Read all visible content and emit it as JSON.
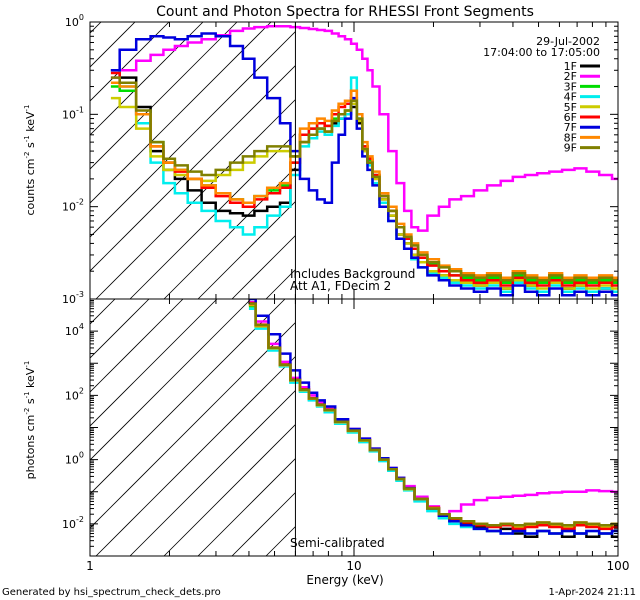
{
  "title": "Count and Photon Spectra for RHESSI Front Segments",
  "date": "29-Jul-2002",
  "time_range": "17:04:00 to 17:05:00",
  "xlabel": "Energy (keV)",
  "footer_left": "Generated by hsi_spectrum_check_dets.pro",
  "footer_right": "1-Apr-2024 21:11",
  "colors": {
    "1F": "#000000",
    "2F": "#ff00ff",
    "3F": "#00dd00",
    "4F": "#00eeee",
    "5F": "#cccc00",
    "6F": "#ff0000",
    "7F": "#0000dd",
    "8F": "#ff8800",
    "9F": "#808000"
  },
  "chart_data": [
    {
      "type": "line",
      "step": true,
      "name": "count-spectra",
      "ylabel_main": "counts cm",
      "ylabel_exp1": "-2",
      "ylabel_mid": " s",
      "ylabel_exp2": "-1",
      "ylabel_end": " keV",
      "ylabel_exp3": "-1",
      "xscale": "log",
      "yscale": "log",
      "xlim": [
        1,
        100
      ],
      "ylim": [
        0.001,
        1
      ],
      "x_ticks": [
        1,
        10,
        100
      ],
      "y_ticks": [
        {
          "value": 0.001,
          "mantissa": "10",
          "exp": "-3"
        },
        {
          "value": 0.01,
          "mantissa": "10",
          "exp": "-2"
        },
        {
          "value": 0.1,
          "mantissa": "10",
          "exp": "-1"
        },
        {
          "value": 1,
          "mantissa": "10",
          "exp": "0"
        }
      ],
      "vline_keV": 6,
      "annotation_lines": [
        "Includes Background",
        "Att A1, FDecim 2"
      ],
      "x": [
        1.2,
        1.4,
        1.6,
        1.8,
        2.0,
        2.2,
        2.5,
        2.8,
        3.2,
        3.6,
        4.0,
        4.4,
        5.0,
        5.5,
        6.0,
        6.5,
        7.0,
        7.5,
        8.0,
        8.5,
        9.0,
        9.5,
        10.0,
        10.5,
        11.0,
        11.5,
        12.0,
        13.0,
        14.0,
        15.0,
        16.0,
        17.0,
        18.0,
        20.0,
        22.0,
        24.0,
        27.0,
        30.0,
        34.0,
        38.0,
        42.0,
        47.0,
        52.0,
        58.0,
        65.0,
        72.0,
        80.0,
        90.0,
        100.0
      ],
      "series": [
        {
          "name": "1F",
          "values": [
            0.3,
            0.25,
            0.12,
            0.04,
            0.025,
            0.02,
            0.015,
            0.011,
            0.009,
            0.0085,
            0.008,
            0.009,
            0.01,
            0.011,
            0.025,
            0.05,
            0.06,
            0.07,
            0.065,
            0.08,
            0.09,
            0.1,
            0.12,
            0.08,
            0.04,
            0.03,
            0.02,
            0.012,
            0.008,
            0.005,
            0.004,
            0.003,
            0.0025,
            0.002,
            0.0018,
            0.0016,
            0.0015,
            0.0014,
            0.0015,
            0.0013,
            0.0016,
            0.0014,
            0.0012,
            0.0015,
            0.0013,
            0.0014,
            0.0012,
            0.0013,
            0.0012
          ]
        },
        {
          "name": "2F",
          "values": [
            0.25,
            0.3,
            0.38,
            0.44,
            0.5,
            0.55,
            0.6,
            0.65,
            0.72,
            0.8,
            0.85,
            0.88,
            0.9,
            0.9,
            0.88,
            0.86,
            0.84,
            0.82,
            0.8,
            0.75,
            0.7,
            0.65,
            0.58,
            0.5,
            0.4,
            0.3,
            0.2,
            0.1,
            0.04,
            0.018,
            0.009,
            0.006,
            0.0055,
            0.008,
            0.01,
            0.012,
            0.013,
            0.015,
            0.017,
            0.019,
            0.021,
            0.022,
            0.023,
            0.024,
            0.025,
            0.026,
            0.024,
            0.022,
            0.02
          ]
        },
        {
          "name": "3F",
          "values": [
            0.2,
            0.18,
            0.1,
            0.05,
            0.03,
            0.025,
            0.02,
            0.017,
            0.014,
            0.012,
            0.011,
            0.013,
            0.015,
            0.017,
            0.03,
            0.06,
            0.07,
            0.08,
            0.075,
            0.09,
            0.1,
            0.11,
            0.14,
            0.09,
            0.045,
            0.032,
            0.022,
            0.013,
            0.009,
            0.006,
            0.0045,
            0.0035,
            0.0028,
            0.0024,
            0.002,
            0.0018,
            0.0017,
            0.0016,
            0.0017,
            0.0015,
            0.0018,
            0.0016,
            0.0015,
            0.0017,
            0.0015,
            0.0016,
            0.0015,
            0.0016,
            0.0015
          ]
        },
        {
          "name": "4F",
          "values": [
            0.3,
            0.2,
            0.08,
            0.03,
            0.018,
            0.014,
            0.011,
            0.009,
            0.007,
            0.006,
            0.005,
            0.006,
            0.008,
            0.01,
            0.022,
            0.045,
            0.055,
            0.065,
            0.06,
            0.075,
            0.09,
            0.1,
            0.25,
            0.09,
            0.04,
            0.028,
            0.018,
            0.011,
            0.007,
            0.0045,
            0.0035,
            0.0027,
            0.0022,
            0.0019,
            0.0017,
            0.0015,
            0.0014,
            0.0013,
            0.0014,
            0.0012,
            0.0015,
            0.0013,
            0.0012,
            0.0014,
            0.0012,
            0.0013,
            0.0012,
            0.0013,
            0.0012
          ]
        },
        {
          "name": "5F",
          "values": [
            0.15,
            0.12,
            0.07,
            0.035,
            0.025,
            0.022,
            0.02,
            0.019,
            0.022,
            0.025,
            0.03,
            0.035,
            0.04,
            0.04,
            0.035,
            0.05,
            0.06,
            0.07,
            0.065,
            0.085,
            0.1,
            0.11,
            0.13,
            0.085,
            0.04,
            0.03,
            0.02,
            0.012,
            0.008,
            0.005,
            0.004,
            0.003,
            0.0025,
            0.002,
            0.0018,
            0.0016,
            0.0015,
            0.0014,
            0.0015,
            0.0013,
            0.0016,
            0.0014,
            0.0013,
            0.0015,
            0.0013,
            0.0014,
            0.0013,
            0.0014,
            0.0013
          ]
        },
        {
          "name": "6F",
          "values": [
            0.28,
            0.22,
            0.1,
            0.045,
            0.03,
            0.024,
            0.02,
            0.016,
            0.013,
            0.011,
            0.01,
            0.012,
            0.014,
            0.016,
            0.03,
            0.06,
            0.07,
            0.08,
            0.075,
            0.1,
            0.12,
            0.13,
            0.18,
            0.1,
            0.045,
            0.033,
            0.022,
            0.013,
            0.009,
            0.006,
            0.0045,
            0.0035,
            0.0028,
            0.0023,
            0.002,
            0.0018,
            0.0016,
            0.0015,
            0.0016,
            0.0014,
            0.0017,
            0.0015,
            0.0014,
            0.0016,
            0.0014,
            0.0015,
            0.0014,
            0.0015,
            0.0014
          ]
        },
        {
          "name": "7F",
          "values": [
            0.3,
            0.5,
            0.65,
            0.7,
            0.68,
            0.65,
            0.7,
            0.75,
            0.7,
            0.55,
            0.4,
            0.25,
            0.15,
            0.08,
            0.04,
            0.02,
            0.015,
            0.012,
            0.011,
            0.03,
            0.06,
            0.09,
            0.15,
            0.07,
            0.035,
            0.025,
            0.017,
            0.01,
            0.007,
            0.0045,
            0.0035,
            0.0028,
            0.0022,
            0.0018,
            0.0016,
            0.0014,
            0.0013,
            0.0012,
            0.0013,
            0.0011,
            0.0014,
            0.0012,
            0.0011,
            0.0013,
            0.0011,
            0.0012,
            0.0011,
            0.0012,
            0.0011
          ]
        },
        {
          "name": "8F",
          "values": [
            0.22,
            0.2,
            0.1,
            0.045,
            0.03,
            0.025,
            0.02,
            0.017,
            0.014,
            0.012,
            0.011,
            0.013,
            0.016,
            0.018,
            0.035,
            0.07,
            0.08,
            0.09,
            0.085,
            0.11,
            0.13,
            0.14,
            0.18,
            0.1,
            0.05,
            0.035,
            0.024,
            0.014,
            0.01,
            0.0065,
            0.005,
            0.004,
            0.0032,
            0.0027,
            0.0023,
            0.0021,
            0.0019,
            0.0018,
            0.0019,
            0.0017,
            0.002,
            0.0018,
            0.0017,
            0.0019,
            0.0017,
            0.0018,
            0.0017,
            0.0018,
            0.0017
          ]
        },
        {
          "name": "9F",
          "values": [
            0.25,
            0.22,
            0.11,
            0.05,
            0.033,
            0.028,
            0.024,
            0.022,
            0.025,
            0.03,
            0.035,
            0.04,
            0.045,
            0.045,
            0.035,
            0.05,
            0.06,
            0.07,
            0.065,
            0.085,
            0.1,
            0.11,
            0.14,
            0.09,
            0.042,
            0.03,
            0.021,
            0.013,
            0.009,
            0.006,
            0.0047,
            0.0038,
            0.003,
            0.0025,
            0.0022,
            0.002,
            0.0018,
            0.0017,
            0.0018,
            0.0016,
            0.0019,
            0.0017,
            0.0016,
            0.0018,
            0.0016,
            0.0017,
            0.0016,
            0.0017,
            0.0016
          ]
        }
      ]
    },
    {
      "type": "line",
      "step": true,
      "name": "photon-spectra",
      "ylabel_main": "photons cm",
      "ylabel_exp1": "-2",
      "ylabel_mid": " s",
      "ylabel_exp2": "-1",
      "ylabel_end": " keV",
      "ylabel_exp3": "-1",
      "xscale": "log",
      "yscale": "log",
      "xlim": [
        1,
        100
      ],
      "ylim": [
        0.001,
        100000
      ],
      "x_ticks": [
        1,
        10,
        100
      ],
      "y_ticks": [
        {
          "value": 0.01,
          "mantissa": "10",
          "exp": "-2"
        },
        {
          "value": 1,
          "mantissa": "10",
          "exp": "0"
        },
        {
          "value": 100,
          "mantissa": "10",
          "exp": "2"
        },
        {
          "value": 10000,
          "mantissa": "10",
          "exp": "4"
        }
      ],
      "vline_keV": 6,
      "annotation_lines": [
        "Semi-calibrated"
      ],
      "x": [
        4.0,
        4.5,
        5.0,
        5.5,
        6.0,
        6.5,
        7.0,
        7.5,
        8.0,
        9.0,
        10.0,
        11.0,
        12.0,
        13.0,
        14.0,
        15.0,
        16.0,
        18.0,
        20.0,
        22.0,
        24.0,
        27.0,
        30.0,
        34.0,
        38.0,
        42.0,
        47.0,
        52.0,
        58.0,
        65.0,
        72.0,
        80.0,
        90.0,
        100.0
      ],
      "series": [
        {
          "name": "1F",
          "values": [
            70000,
            15000,
            3000,
            900,
            300,
            150,
            80,
            50,
            35,
            15,
            8,
            4,
            2,
            1,
            0.5,
            0.25,
            0.13,
            0.06,
            0.03,
            0.018,
            0.012,
            0.01,
            0.008,
            0.006,
            0.007,
            0.005,
            0.004,
            0.006,
            0.005,
            0.004,
            0.005,
            0.004,
            0.005,
            0.004
          ]
        },
        {
          "name": "2F",
          "values": [
            80000,
            20000,
            4000,
            1100,
            350,
            180,
            100,
            60,
            40,
            18,
            9,
            4.5,
            2.2,
            1.1,
            0.55,
            0.27,
            0.15,
            0.07,
            0.035,
            0.02,
            0.025,
            0.04,
            0.055,
            0.065,
            0.07,
            0.075,
            0.08,
            0.09,
            0.095,
            0.1,
            0.1,
            0.11,
            0.105,
            0.1
          ]
        },
        {
          "name": "3F",
          "values": [
            60000,
            14000,
            2800,
            850,
            280,
            140,
            75,
            48,
            33,
            14,
            7.5,
            3.8,
            1.9,
            0.95,
            0.48,
            0.24,
            0.12,
            0.055,
            0.03,
            0.02,
            0.015,
            0.012,
            0.01,
            0.009,
            0.01,
            0.008,
            0.009,
            0.01,
            0.009,
            0.008,
            0.01,
            0.009,
            0.008,
            0.009
          ]
        },
        {
          "name": "4F",
          "values": [
            50000,
            12000,
            2500,
            800,
            250,
            130,
            70,
            45,
            30,
            13,
            7,
            3.5,
            1.8,
            0.9,
            0.45,
            0.22,
            0.11,
            0.05,
            0.025,
            0.015,
            0.01,
            0.008,
            0.007,
            0.006,
            0.005,
            0.006,
            0.005,
            0.006,
            0.005,
            0.006,
            0.005,
            0.006,
            0.005,
            0.006
          ]
        },
        {
          "name": "5F",
          "values": [
            65000,
            14000,
            2900,
            870,
            290,
            145,
            78,
            49,
            34,
            14.5,
            7.8,
            3.9,
            2,
            1,
            0.5,
            0.25,
            0.12,
            0.058,
            0.03,
            0.02,
            0.015,
            0.012,
            0.01,
            0.009,
            0.01,
            0.008,
            0.009,
            0.01,
            0.009,
            0.008,
            0.01,
            0.009,
            0.008,
            0.009
          ]
        },
        {
          "name": "6F",
          "values": [
            75000,
            16000,
            3100,
            920,
            310,
            155,
            82,
            52,
            36,
            15.5,
            8.2,
            4.1,
            2.05,
            1.02,
            0.51,
            0.26,
            0.13,
            0.06,
            0.032,
            0.02,
            0.014,
            0.011,
            0.009,
            0.008,
            0.009,
            0.007,
            0.008,
            0.009,
            0.008,
            0.007,
            0.009,
            0.008,
            0.007,
            0.008
          ]
        },
        {
          "name": "7F",
          "values": [
            100000,
            30000,
            8000,
            2000,
            600,
            250,
            120,
            70,
            45,
            18,
            9,
            4.5,
            2.2,
            1.1,
            0.55,
            0.27,
            0.13,
            0.06,
            0.03,
            0.018,
            0.012,
            0.009,
            0.007,
            0.006,
            0.005,
            0.006,
            0.005,
            0.006,
            0.005,
            0.006,
            0.005,
            0.006,
            0.005,
            0.006
          ]
        },
        {
          "name": "8F",
          "values": [
            68000,
            15000,
            3000,
            880,
            295,
            148,
            79,
            50,
            35,
            14.8,
            7.9,
            4,
            2,
            1,
            0.5,
            0.25,
            0.125,
            0.06,
            0.031,
            0.02,
            0.015,
            0.012,
            0.01,
            0.009,
            0.01,
            0.009,
            0.01,
            0.011,
            0.01,
            0.009,
            0.011,
            0.01,
            0.009,
            0.01
          ]
        },
        {
          "name": "9F",
          "values": [
            72000,
            15500,
            3050,
            900,
            300,
            150,
            80,
            51,
            35,
            15,
            8,
            4,
            2,
            1,
            0.5,
            0.25,
            0.125,
            0.06,
            0.03,
            0.02,
            0.015,
            0.012,
            0.01,
            0.009,
            0.01,
            0.009,
            0.01,
            0.011,
            0.01,
            0.009,
            0.011,
            0.01,
            0.009,
            0.01
          ]
        }
      ]
    }
  ]
}
